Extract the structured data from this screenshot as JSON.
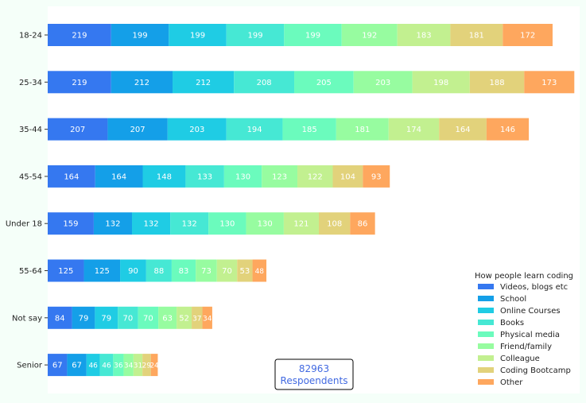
{
  "chart_data": {
    "type": "bar",
    "orientation": "horizontal",
    "stacked": true,
    "categories": [
      "18-24",
      "25-34",
      "35-44",
      "45-54",
      "Under 18",
      "55-64",
      "Not say",
      "Senior"
    ],
    "series": [
      {
        "name": "Videos, blogs etc",
        "color": "#3578f0",
        "values": [
          219,
          219,
          207,
          164,
          159,
          125,
          84,
          67
        ]
      },
      {
        "name": "School",
        "color": "#149fe8",
        "values": [
          199,
          212,
          207,
          164,
          132,
          125,
          79,
          67
        ]
      },
      {
        "name": "Online Courses",
        "color": "#1fcce4",
        "values": [
          199,
          212,
          203,
          148,
          132,
          90,
          79,
          46
        ]
      },
      {
        "name": "Books",
        "color": "#46e8d4",
        "values": [
          199,
          208,
          194,
          133,
          132,
          88,
          70,
          46
        ]
      },
      {
        "name": "Physical media",
        "color": "#6bfbbd",
        "values": [
          199,
          205,
          185,
          130,
          130,
          83,
          70,
          36
        ]
      },
      {
        "name": "Friend/family",
        "color": "#97fca0",
        "values": [
          192,
          203,
          181,
          123,
          130,
          73,
          63,
          34
        ]
      },
      {
        "name": "Colleague",
        "color": "#c2f090",
        "values": [
          183,
          198,
          174,
          122,
          121,
          70,
          52,
          31
        ]
      },
      {
        "name": "Coding Bootcamp",
        "color": "#e2d27b",
        "values": [
          181,
          188,
          164,
          104,
          108,
          53,
          37,
          29
        ]
      },
      {
        "name": "Other",
        "color": "#fea75e",
        "values": [
          172,
          173,
          146,
          93,
          86,
          48,
          34,
          24
        ]
      }
    ],
    "legend": {
      "title": "How people learn coding",
      "position": "lower-right"
    },
    "annotation": {
      "line1": "82963",
      "line2": "Respoendents"
    },
    "xlim": [
      0,
      1800
    ],
    "grid": false,
    "colors": {
      "background": "#f5fff9",
      "plot_background": "#ffffff",
      "label_text": "#ffffff",
      "annotation_text": "#4169e1"
    }
  }
}
